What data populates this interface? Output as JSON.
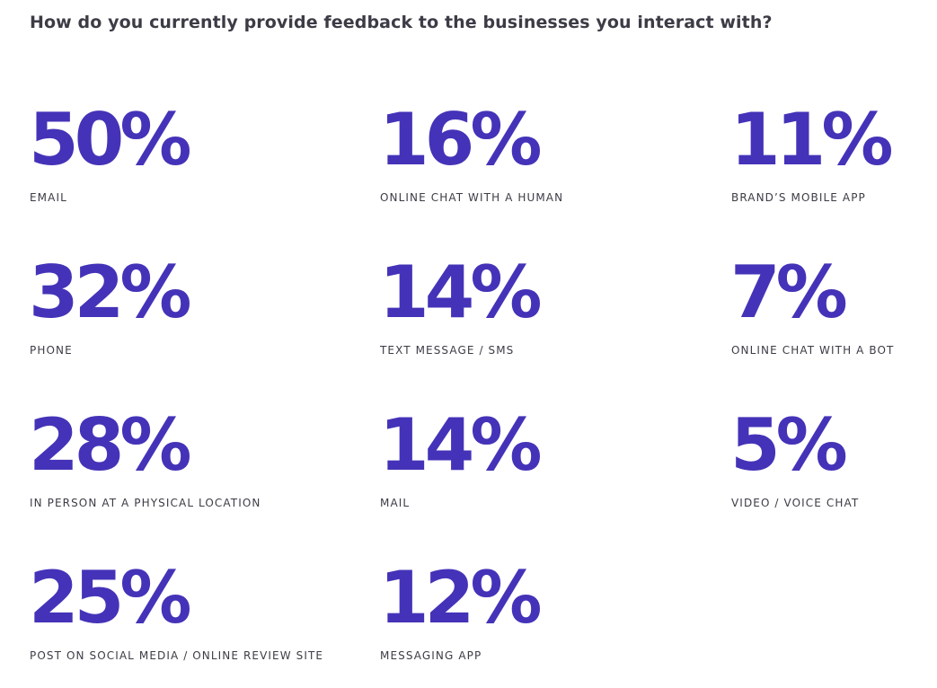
{
  "title": "How do you currently provide feedback to the businesses you interact with?",
  "colors": {
    "accent": "#4433b8",
    "text": "#3c3c46"
  },
  "chart_data": {
    "type": "table",
    "title": "How do you currently provide feedback to the businesses you interact with?",
    "unit": "%",
    "items": [
      {
        "label": "EMAIL",
        "value": 50,
        "display": "50%"
      },
      {
        "label": "PHONE",
        "value": 32,
        "display": "32%"
      },
      {
        "label": "IN PERSON AT A PHYSICAL LOCATION",
        "value": 28,
        "display": "28%"
      },
      {
        "label": "POST ON SOCIAL MEDIA / ONLINE REVIEW SITE",
        "value": 25,
        "display": "25%"
      },
      {
        "label": "ONLINE CHAT WITH A HUMAN",
        "value": 16,
        "display": "16%"
      },
      {
        "label": "TEXT MESSAGE / SMS",
        "value": 14,
        "display": "14%"
      },
      {
        "label": "MAIL",
        "value": 14,
        "display": "14%"
      },
      {
        "label": "MESSAGING APP",
        "value": 12,
        "display": "12%"
      },
      {
        "label": "BRAND’S MOBILE APP",
        "value": 11,
        "display": "11%"
      },
      {
        "label": "ONLINE CHAT WITH A BOT",
        "value": 7,
        "display": "7%"
      },
      {
        "label": "VIDEO / VOICE CHAT",
        "value": 5,
        "display": "5%"
      }
    ]
  }
}
